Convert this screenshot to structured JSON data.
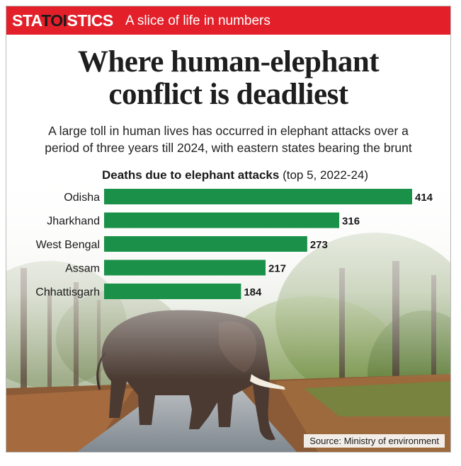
{
  "header": {
    "brand_part1": "STA",
    "brand_part2": "TOI",
    "brand_part3": "STICS",
    "tagline": "A slice of life in numbers"
  },
  "title_line1": "Where human-elephant",
  "title_line2": "conflict is deadliest",
  "subtitle_line1": "A large toll in human lives has occurred in elephant attacks over a",
  "subtitle_line2": "period of three years till 2024, with eastern states bearing the brunt",
  "source": "Source: Ministry of environment",
  "colors": {
    "banner": "#e3202a",
    "bar": "#1a9048"
  },
  "chart_data": {
    "type": "bar",
    "orientation": "horizontal",
    "title_bold": "Deaths due to elephant attacks",
    "title_rest": " (top 5, 2022-24)",
    "categories": [
      "Odisha",
      "Jharkhand",
      "West Bengal",
      "Assam",
      "Chhattisgarh"
    ],
    "values": [
      414,
      316,
      273,
      217,
      184
    ],
    "xlim": [
      0,
      414
    ]
  }
}
